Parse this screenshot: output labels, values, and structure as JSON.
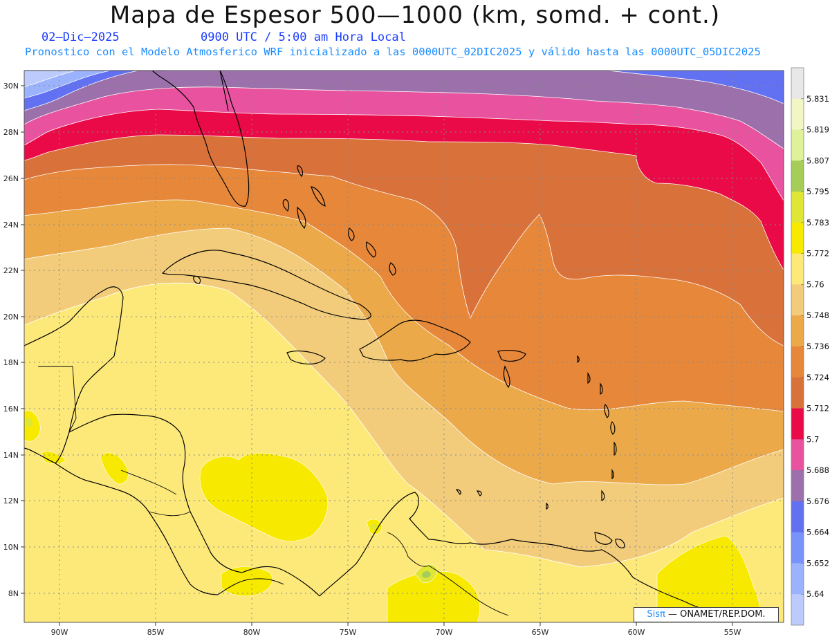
{
  "header": {
    "title": "Mapa de Espesor 500—1000 (km, somd. + cont.)",
    "date": "02—Dic—2025",
    "utc": "0900 UTC / 5:00 am Hora Local",
    "description": "Pronostico con el Modelo Atmosferico WRF inicializado a las 0000UTC_02DIC2025 y válido hasta las  0000UTC_05DIC2025"
  },
  "axes": {
    "lat_labels": [
      "30N",
      "28N",
      "26N",
      "24N",
      "22N",
      "20N",
      "18N",
      "16N",
      "14N",
      "12N",
      "10N",
      "8N"
    ],
    "lon_labels": [
      "90W",
      "85W",
      "80W",
      "75W",
      "70W",
      "65W",
      "60W",
      "55W"
    ]
  },
  "colorbar": {
    "labels": [
      "5.831",
      "5.819",
      "5.807",
      "5.795",
      "5.783",
      "5.772",
      "5.76",
      "5.748",
      "5.736",
      "5.724",
      "5.712",
      "5.7",
      "5.688",
      "5.676",
      "5.664",
      "5.652",
      "5.64"
    ],
    "colors": [
      "#e8e8e8",
      "#f2f6c4",
      "#dff29a",
      "#a6cd57",
      "#dfe636",
      "#f7e900",
      "#fde97a",
      "#f2cc7a",
      "#eca94a",
      "#e6873a",
      "#d9713a",
      "#ea0a47",
      "#e8529e",
      "#9b70ab",
      "#6270f2",
      "#7a93fb",
      "#9bb3fc",
      "#bccbfc"
    ]
  },
  "credit": {
    "brand": "Sisπ",
    "text": "— ONAMET/REP.DOM."
  }
}
